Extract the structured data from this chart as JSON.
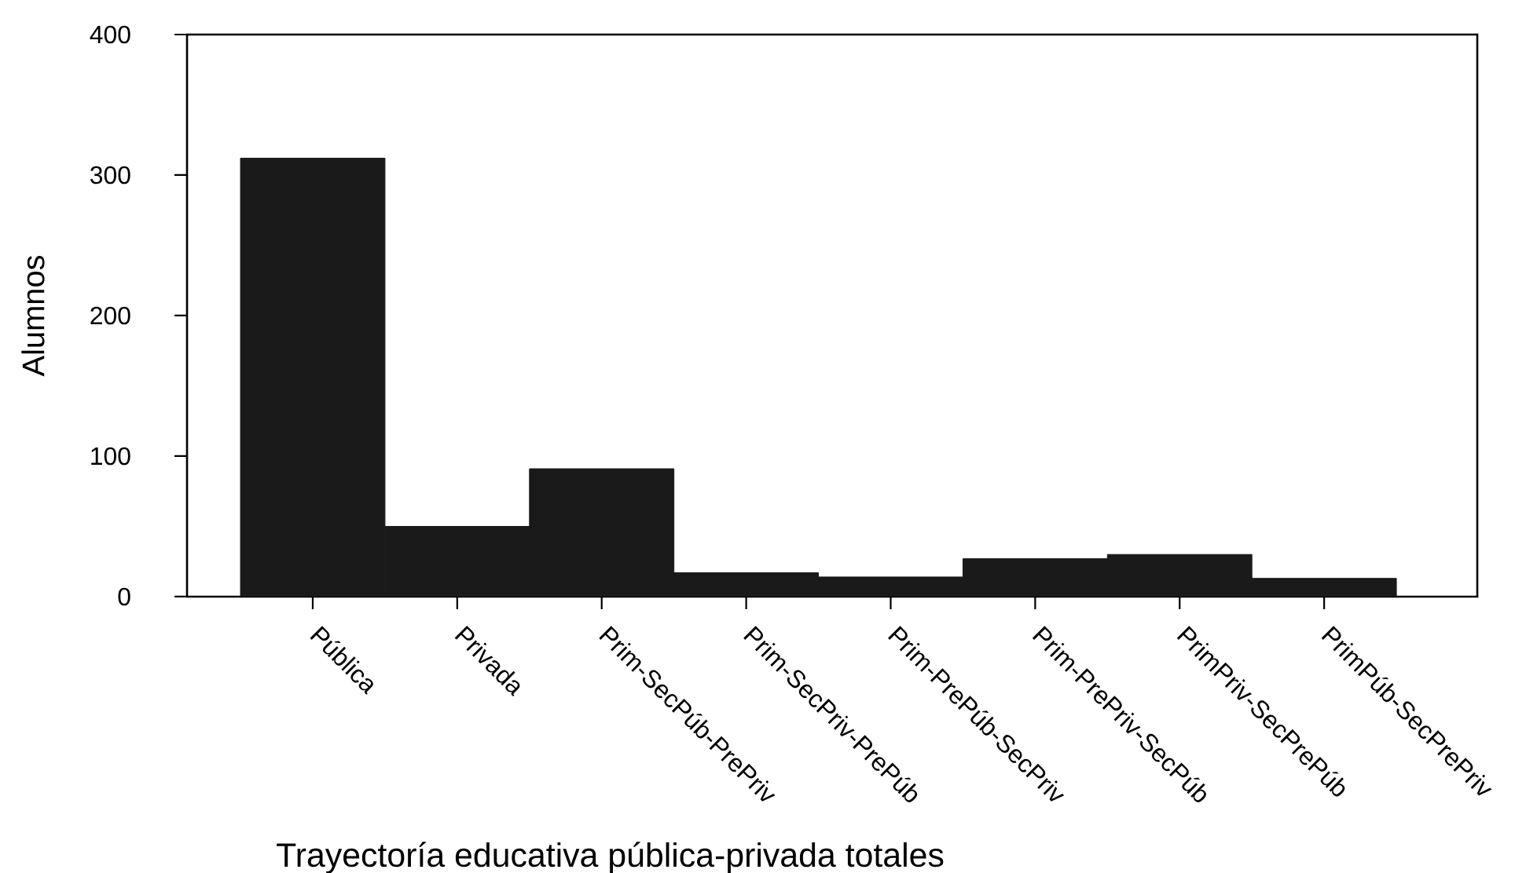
{
  "chart_data": {
    "type": "bar",
    "xlabel": "Trayectoría educativa pública-privada totales",
    "ylabel": "Alumnos",
    "categories": [
      "Pública",
      "Privada",
      "Prim-SecPúb-PrePriv",
      "Prim-SecPriv-PrePúb",
      "Prim-PrePúb-SecPriv",
      "Prim-PrePriv-SecPúb",
      "PrimPriv-SecPrePúb",
      "PrimPúb-SecPrePriv"
    ],
    "values": [
      312,
      50,
      91,
      17,
      14,
      27,
      30,
      13
    ],
    "color": "#1a1a1a",
    "ylim": [
      0,
      400
    ],
    "yticks": [
      0,
      100,
      200,
      300,
      400
    ]
  }
}
